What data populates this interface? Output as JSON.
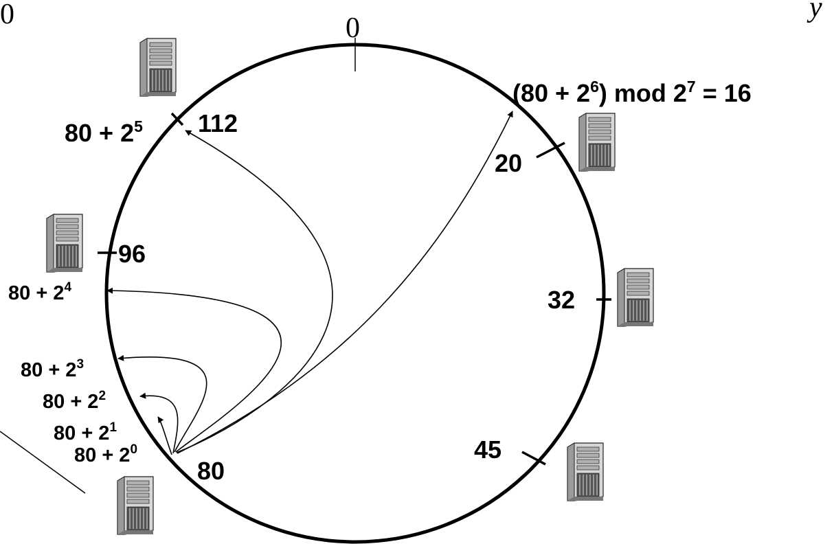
{
  "corner_labels": {
    "top_left": "0",
    "top_right": "y"
  },
  "ring_zero_label": "0",
  "nodes": [
    {
      "id": "112",
      "label": "112"
    },
    {
      "id": "20",
      "label": "20"
    },
    {
      "id": "96",
      "label": "96"
    },
    {
      "id": "32",
      "label": "32"
    },
    {
      "id": "45",
      "label": "45"
    },
    {
      "id": "80",
      "label": "80"
    }
  ],
  "fingers": [
    {
      "base": "80 + 2",
      "exp": "0"
    },
    {
      "base": "80 + 2",
      "exp": "1"
    },
    {
      "base": "80 + 2",
      "exp": "2"
    },
    {
      "base": "80 + 2",
      "exp": "3"
    },
    {
      "base": "80 + 2",
      "exp": "4"
    },
    {
      "base": "80 + 2",
      "exp": "5"
    },
    {
      "base": "(80 + 2",
      "exp": "6",
      "suffix_a": ") mod 2",
      "exp2": "7",
      "suffix_b": " = 16"
    }
  ],
  "server_icon": "server-tower-icon"
}
